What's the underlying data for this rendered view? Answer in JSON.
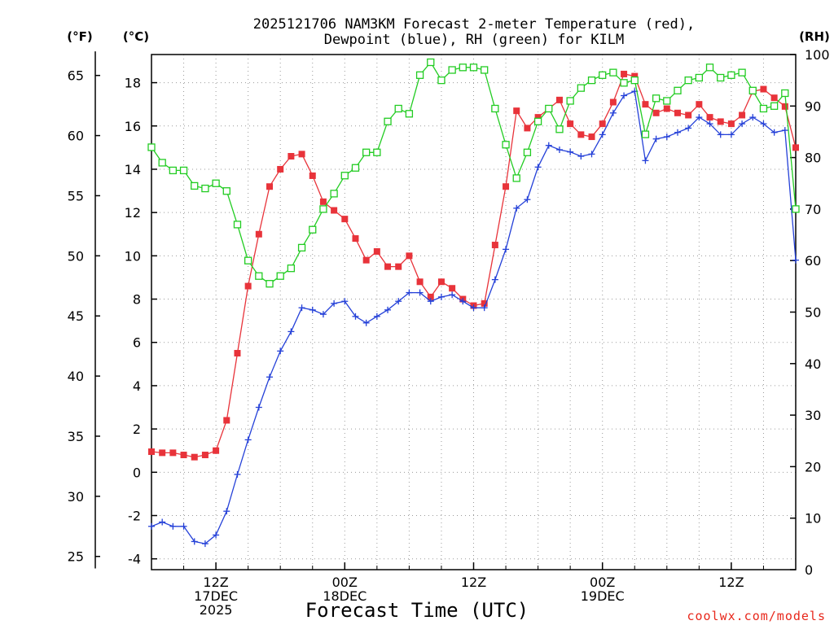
{
  "chart_data": {
    "type": "line",
    "title_line1": "2025121706 NAM3KM Forecast 2-meter Temperature (red),",
    "title_line2": "Dewpoint (blue), RH (green) for KILM",
    "xlabel": "Forecast Time (UTC)",
    "credit": "coolwx.com/models",
    "units": {
      "fahrenheit": "(°F)",
      "celsius": "(°C)",
      "rh": "(RH)"
    },
    "hours_range": [
      6,
      66
    ],
    "celsius_range": [
      -4.5,
      19.3
    ],
    "rh_range": [
      0,
      100
    ],
    "fahrenheit_ticks": [
      25,
      30,
      35,
      40,
      45,
      50,
      55,
      60,
      65
    ],
    "celsius_ticks": [
      -4,
      -2,
      0,
      2,
      4,
      6,
      8,
      10,
      12,
      14,
      16,
      18
    ],
    "rh_ticks": [
      0,
      10,
      20,
      30,
      40,
      50,
      60,
      70,
      80,
      90,
      100
    ],
    "x_ticks": [
      {
        "hour": 12,
        "lines": [
          "12Z",
          "17DEC",
          "2025"
        ]
      },
      {
        "hour": 24,
        "lines": [
          "00Z",
          "18DEC"
        ]
      },
      {
        "hour": 36,
        "lines": [
          "12Z"
        ]
      },
      {
        "hour": 48,
        "lines": [
          "00Z",
          "19DEC"
        ]
      },
      {
        "hour": 60,
        "lines": [
          "12Z"
        ]
      }
    ],
    "series": [
      {
        "name": "Temperature",
        "color": "#e8333a",
        "axis": "celsius",
        "marker": "filled-square",
        "x": [
          6,
          7,
          8,
          9,
          10,
          11,
          12,
          13,
          14,
          15,
          16,
          17,
          18,
          19,
          20,
          21,
          22,
          23,
          24,
          25,
          26,
          27,
          28,
          29,
          30,
          31,
          32,
          33,
          34,
          35,
          36,
          37,
          38,
          39,
          40,
          41,
          42,
          43,
          44,
          45,
          46,
          47,
          48,
          49,
          50,
          51,
          52,
          53,
          54,
          55,
          56,
          57,
          58,
          59,
          60,
          61,
          62,
          63,
          64,
          65,
          66
        ],
        "values": [
          0.95,
          0.9,
          0.9,
          0.8,
          0.7,
          0.8,
          1.0,
          2.4,
          5.5,
          8.6,
          11.0,
          13.2,
          14.0,
          14.6,
          14.7,
          13.7,
          12.5,
          12.1,
          11.7,
          10.8,
          9.8,
          10.2,
          9.5,
          9.5,
          10.0,
          8.8,
          8.1,
          8.8,
          8.5,
          8.0,
          7.7,
          7.8,
          10.5,
          13.2,
          16.7,
          15.9,
          16.4,
          16.8,
          17.2,
          16.1,
          15.6,
          15.5,
          16.1,
          17.1,
          18.4,
          18.3,
          17.0,
          16.6,
          16.8,
          16.6,
          16.5,
          17.0,
          16.4,
          16.2,
          16.1,
          16.5,
          17.6,
          17.7,
          17.3,
          16.9,
          15.0
        ]
      },
      {
        "name": "Dewpoint",
        "color": "#2440d8",
        "axis": "celsius",
        "marker": "plus",
        "x": [
          6,
          7,
          8,
          9,
          10,
          11,
          12,
          13,
          14,
          15,
          16,
          17,
          18,
          19,
          20,
          21,
          22,
          23,
          24,
          25,
          26,
          27,
          28,
          29,
          30,
          31,
          32,
          33,
          34,
          35,
          36,
          37,
          38,
          39,
          40,
          41,
          42,
          43,
          44,
          45,
          46,
          47,
          48,
          49,
          50,
          51,
          52,
          53,
          54,
          55,
          56,
          57,
          58,
          59,
          60,
          61,
          62,
          63,
          64,
          65,
          66
        ],
        "values": [
          -2.5,
          -2.3,
          -2.5,
          -2.5,
          -3.2,
          -3.3,
          -2.9,
          -1.8,
          -0.1,
          1.5,
          3.0,
          4.4,
          5.6,
          6.5,
          7.6,
          7.5,
          7.3,
          7.8,
          7.9,
          7.2,
          6.9,
          7.2,
          7.5,
          7.9,
          8.3,
          8.3,
          7.9,
          8.1,
          8.2,
          7.9,
          7.6,
          7.6,
          8.9,
          10.3,
          12.2,
          12.6,
          14.1,
          15.1,
          14.9,
          14.8,
          14.6,
          14.7,
          15.6,
          16.6,
          17.4,
          17.6,
          14.4,
          15.4,
          15.5,
          15.7,
          15.9,
          16.4,
          16.1,
          15.6,
          15.6,
          16.1,
          16.4,
          16.1,
          15.7,
          15.8,
          9.8
        ]
      },
      {
        "name": "RH",
        "color": "#22cc22",
        "axis": "rh",
        "marker": "open-square",
        "x": [
          6,
          7,
          8,
          9,
          10,
          11,
          12,
          13,
          14,
          15,
          16,
          17,
          18,
          19,
          20,
          21,
          22,
          23,
          24,
          25,
          26,
          27,
          28,
          29,
          30,
          31,
          32,
          33,
          34,
          35,
          36,
          37,
          38,
          39,
          40,
          41,
          42,
          43,
          44,
          45,
          46,
          47,
          48,
          49,
          50,
          51,
          52,
          53,
          54,
          55,
          56,
          57,
          58,
          59,
          60,
          61,
          62,
          63,
          64,
          65,
          66
        ],
        "values": [
          82,
          79,
          77.5,
          77.5,
          74.5,
          74,
          75,
          73.5,
          67,
          60,
          57,
          55.5,
          57,
          58.5,
          62.5,
          66,
          70,
          73,
          76.5,
          78,
          81,
          81,
          87,
          89.5,
          88.5,
          96,
          98.5,
          95,
          97,
          97.5,
          97.5,
          97,
          89.5,
          82.5,
          76,
          81,
          87,
          89.5,
          85.5,
          91,
          93.5,
          95,
          96,
          96.5,
          94.5,
          95,
          84.5,
          91.5,
          91,
          93,
          95,
          95.5,
          97.5,
          95.5,
          96,
          96.5,
          93,
          89.5,
          90,
          92.5,
          70
        ]
      }
    ]
  }
}
